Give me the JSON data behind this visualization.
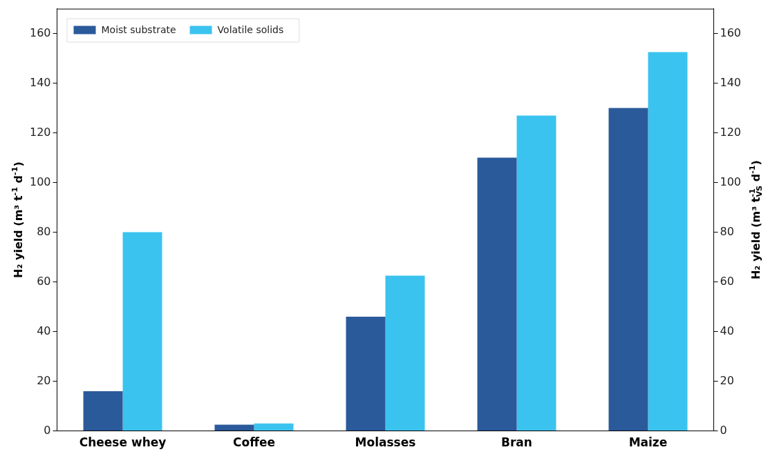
{
  "chart_data": {
    "type": "bar",
    "categories": [
      "Cheese whey",
      "Coffee",
      "Molasses",
      "Bran",
      "Maize"
    ],
    "series": [
      {
        "name": "Moist substrate",
        "color": "#2b5a9b",
        "values": [
          16,
          2.5,
          46,
          110,
          130
        ]
      },
      {
        "name": "Volatile solids",
        "color": "#3bc3ef",
        "values": [
          80,
          3,
          62.5,
          127,
          152.5
        ]
      }
    ],
    "ylabel": "H₂ yield (m³ t$^{-1}$ d$^{-1}$)",
    "y2label": "H₂ yield (m³ t$^{-1}$$_{VS}$ d$^{-1}$)",
    "ylim": [
      0,
      170
    ],
    "yticks": [
      0,
      20,
      40,
      60,
      80,
      100,
      120,
      140,
      160
    ],
    "y2lim": [
      0,
      170
    ],
    "y2ticks": [
      0,
      20,
      40,
      60,
      80,
      100,
      120,
      140,
      160
    ],
    "legend": "top left",
    "grid": false
  }
}
